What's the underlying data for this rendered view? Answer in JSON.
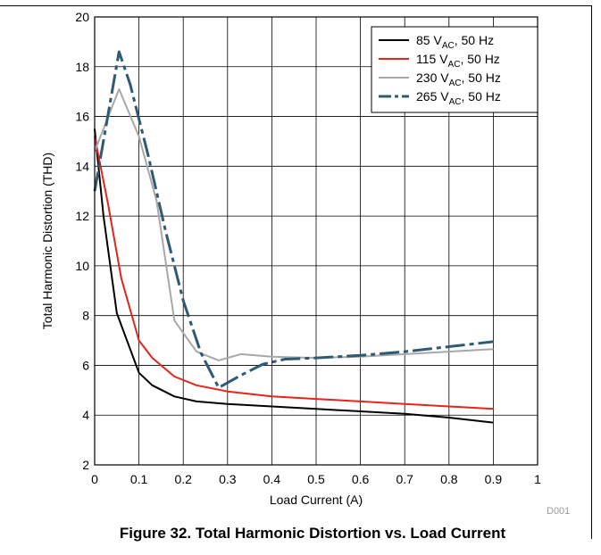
{
  "caption": "Figure 32. Total Harmonic Distortion vs. Load Current",
  "chart_data": {
    "type": "line",
    "title": "",
    "xlabel": "Load Current (A)",
    "ylabel": "Total Harmonic Distortion (THD)",
    "xlim": [
      0,
      1
    ],
    "ylim": [
      2,
      20
    ],
    "xticks": [
      0,
      0.1,
      0.2,
      0.3,
      0.4,
      0.5,
      0.6,
      0.7,
      0.8,
      0.9,
      1
    ],
    "xtick_labels": [
      "0",
      "0.1",
      "0.2",
      "0.3",
      "0.4",
      "0.5",
      "0.6",
      "0.7",
      "0.8",
      "0.9",
      "1"
    ],
    "yticks": [
      2,
      4,
      6,
      8,
      10,
      12,
      14,
      16,
      18,
      20
    ],
    "ytick_labels": [
      "2",
      "4",
      "6",
      "8",
      "10",
      "12",
      "14",
      "16",
      "18",
      "20"
    ],
    "grid": true,
    "legend_position": "top-right",
    "watermark": "D001",
    "series": [
      {
        "name": "85 V",
        "sub": "AC",
        "suffix": ", 50 Hz",
        "color": "#000000",
        "dash": "solid",
        "x": [
          0,
          0.02,
          0.05,
          0.1,
          0.13,
          0.18,
          0.23,
          0.3,
          0.4,
          0.5,
          0.6,
          0.7,
          0.8,
          0.9
        ],
        "y": [
          15.5,
          12,
          8.1,
          5.7,
          5.2,
          4.75,
          4.55,
          4.45,
          4.35,
          4.25,
          4.15,
          4.05,
          3.9,
          3.7
        ]
      },
      {
        "name": "115 V",
        "sub": "AC",
        "suffix": ", 50 Hz",
        "color": "#e8231a",
        "dash": "solid",
        "x": [
          0,
          0.03,
          0.06,
          0.1,
          0.13,
          0.18,
          0.23,
          0.3,
          0.4,
          0.5,
          0.6,
          0.7,
          0.8,
          0.9
        ],
        "y": [
          15.2,
          12.5,
          9.5,
          7.0,
          6.3,
          5.55,
          5.2,
          4.95,
          4.75,
          4.65,
          4.55,
          4.45,
          4.35,
          4.25
        ]
      },
      {
        "name": "230 V",
        "sub": "AC",
        "suffix": ", 50 Hz",
        "color": "#a8a8a8",
        "dash": "solid",
        "x": [
          0,
          0.055,
          0.1,
          0.14,
          0.18,
          0.23,
          0.28,
          0.33,
          0.4,
          0.5,
          0.6,
          0.7,
          0.8,
          0.9
        ],
        "y": [
          14.6,
          17.1,
          15.2,
          12.6,
          7.8,
          6.55,
          6.2,
          6.45,
          6.35,
          6.3,
          6.35,
          6.45,
          6.55,
          6.65
        ]
      },
      {
        "name": "265 V",
        "sub": "AC",
        "suffix": ", 50 Hz",
        "color": "#2f5b72",
        "dash": "dashed",
        "x": [
          0,
          0.055,
          0.08,
          0.12,
          0.16,
          0.2,
          0.24,
          0.28,
          0.33,
          0.38,
          0.43,
          0.5,
          0.6,
          0.7,
          0.8,
          0.9
        ],
        "y": [
          13.0,
          18.6,
          17.3,
          14.5,
          11.4,
          8.6,
          6.5,
          5.1,
          5.6,
          6.05,
          6.25,
          6.3,
          6.4,
          6.55,
          6.75,
          6.95
        ]
      }
    ]
  }
}
